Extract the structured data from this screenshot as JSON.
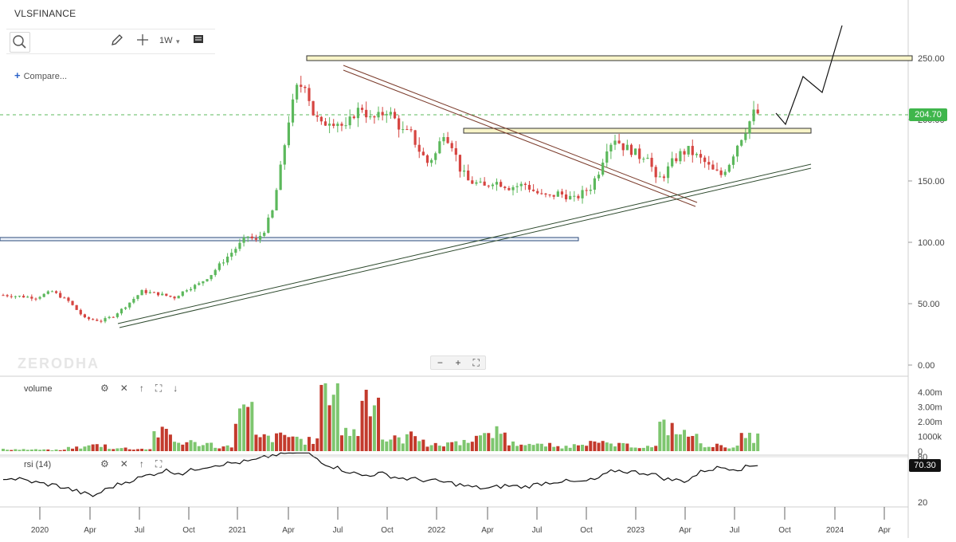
{
  "header": {
    "symbol": "VLSFINANCE",
    "compare_label": "Compare...",
    "interval": "1W"
  },
  "toolbar_icons": [
    "search-icon",
    "pencil-icon",
    "crosshair-icon",
    "chevron-down-icon",
    "candle-type-icon"
  ],
  "zoom_controls": [
    "−",
    "+",
    "⛶"
  ],
  "watermark": "ZERODHA",
  "pane_icons": [
    "gear-icon",
    "close-icon",
    "arrow-up-icon",
    "expand-icon",
    "arrow-down-icon"
  ],
  "colors": {
    "up": "#5cb85c",
    "down": "#d64541",
    "rsi": "#111111",
    "price_tag": "#3fb64c",
    "volume_up": "#7ec66f",
    "volume_down": "#c33a2c"
  },
  "chart_data": {
    "type": "candlestick",
    "price_axis": {
      "ticks": [
        "250.00",
        "200.00",
        "150.00",
        "100.00",
        "50.00",
        "0.00"
      ],
      "range": [
        0,
        280
      ]
    },
    "x_ticks": [
      "2020",
      "Apr",
      "Jul",
      "Oct",
      "2021",
      "Apr",
      "Jul",
      "Oct",
      "2022",
      "Apr",
      "Jul",
      "Oct",
      "2023",
      "Apr",
      "Jul",
      "Oct",
      "2024",
      "Apr"
    ],
    "last_price": "204.70",
    "price_anchors": [
      [
        0,
        57
      ],
      [
        8,
        55
      ],
      [
        12,
        60
      ],
      [
        16,
        52
      ],
      [
        20,
        38
      ],
      [
        24,
        36
      ],
      [
        27,
        40
      ],
      [
        30,
        48
      ],
      [
        34,
        60
      ],
      [
        38,
        58
      ],
      [
        42,
        55
      ],
      [
        45,
        62
      ],
      [
        48,
        66
      ],
      [
        51,
        74
      ],
      [
        54,
        85
      ],
      [
        57,
        95
      ],
      [
        60,
        105
      ],
      [
        62,
        101
      ],
      [
        64,
        110
      ],
      [
        66,
        125
      ],
      [
        68,
        160
      ],
      [
        70,
        200
      ],
      [
        72,
        225
      ],
      [
        74,
        230
      ],
      [
        76,
        205
      ],
      [
        78,
        195
      ],
      [
        80,
        200
      ],
      [
        82,
        198
      ],
      [
        84,
        192
      ],
      [
        86,
        205
      ],
      [
        88,
        210
      ],
      [
        90,
        200
      ],
      [
        92,
        202
      ],
      [
        94,
        208
      ],
      [
        96,
        200
      ],
      [
        98,
        190
      ],
      [
        100,
        188
      ],
      [
        102,
        175
      ],
      [
        104,
        165
      ],
      [
        106,
        172
      ],
      [
        108,
        190
      ],
      [
        110,
        180
      ],
      [
        112,
        160
      ],
      [
        114,
        150
      ],
      [
        116,
        148
      ],
      [
        118,
        145
      ],
      [
        120,
        150
      ],
      [
        122,
        148
      ],
      [
        124,
        145
      ],
      [
        126,
        146
      ],
      [
        128,
        147
      ],
      [
        130,
        142
      ],
      [
        132,
        138
      ],
      [
        134,
        137
      ],
      [
        136,
        140
      ],
      [
        138,
        138
      ],
      [
        140,
        135
      ],
      [
        142,
        140
      ],
      [
        144,
        145
      ],
      [
        146,
        158
      ],
      [
        148,
        178
      ],
      [
        150,
        185
      ],
      [
        152,
        178
      ],
      [
        154,
        175
      ],
      [
        156,
        170
      ],
      [
        158,
        172
      ],
      [
        160,
        150
      ],
      [
        162,
        155
      ],
      [
        164,
        165
      ],
      [
        166,
        172
      ],
      [
        168,
        175
      ],
      [
        170,
        170
      ],
      [
        172,
        165
      ],
      [
        174,
        158
      ],
      [
        176,
        155
      ],
      [
        178,
        165
      ],
      [
        180,
        180
      ],
      [
        182,
        192
      ],
      [
        184,
        205
      ]
    ],
    "projection": [
      [
        974,
        142
      ],
      [
        986,
        156
      ],
      [
        1008,
        96
      ],
      [
        1032,
        116
      ],
      [
        1057,
        32
      ]
    ],
    "volume": {
      "label": "volume",
      "ticks": [
        "4.00m",
        "3.00m",
        "2.00m",
        "1000k",
        "0"
      ],
      "bars": [
        0.12,
        0.1,
        0.08,
        0.25,
        0.4,
        0.2,
        0.15,
        1.2,
        0.6,
        0.5,
        0.3,
        2.6,
        0.9,
        1.0,
        0.7,
        4.6,
        1.3,
        3.8,
        0.8,
        1.0,
        0.4,
        0.6,
        0.9,
        1.3,
        0.5,
        0.4,
        0.3,
        0.6,
        0.5,
        0.4,
        0.3,
        1.6,
        1.1,
        0.4,
        0.3,
        0.9
      ]
    },
    "rsi": {
      "label": "rsi (14)",
      "ticks": [
        "80",
        "20"
      ],
      "value": "70.30",
      "points": [
        52,
        50,
        45,
        42,
        35,
        28,
        40,
        48,
        55,
        62,
        58,
        66,
        70,
        72,
        75,
        82,
        86,
        84,
        70,
        62,
        55,
        58,
        52,
        50,
        48,
        45,
        40,
        38,
        42,
        40,
        45,
        48,
        46,
        50,
        62,
        60,
        58,
        50,
        48,
        62,
        66,
        64,
        70
      ]
    }
  }
}
